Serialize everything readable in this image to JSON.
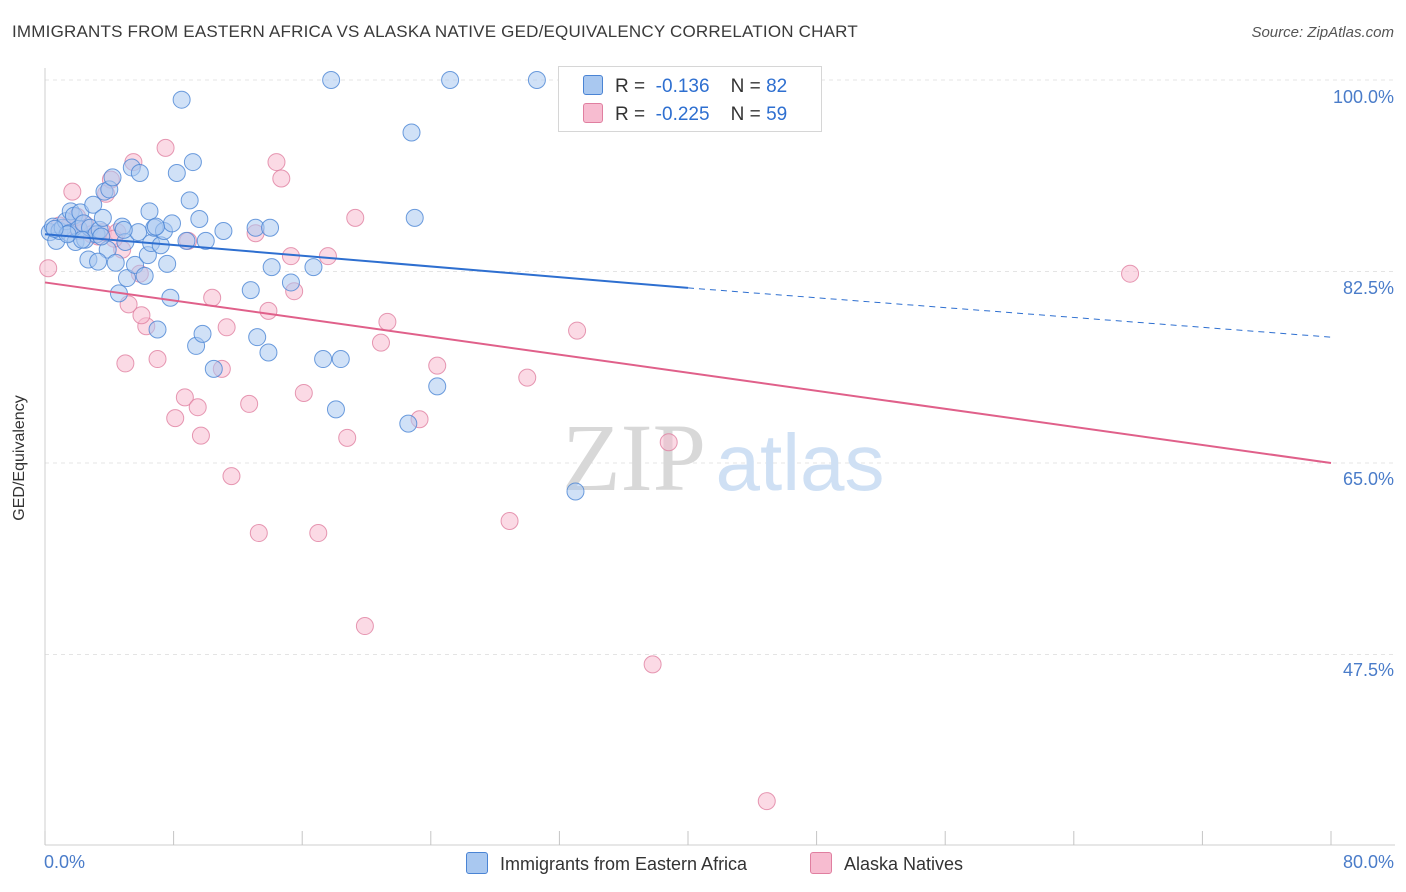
{
  "title": "IMMIGRANTS FROM EASTERN AFRICA VS ALASKA NATIVE GED/EQUIVALENCY CORRELATION CHART",
  "source": "Source: ZipAtlas.com",
  "watermark": {
    "zip": "ZIP",
    "atlas": "atlas"
  },
  "colors": {
    "blue_fill": "#a9c8f0",
    "blue_stroke": "#4a84d4",
    "blue_line": "#2e6fd0",
    "pink_fill": "#f7bcd0",
    "pink_stroke": "#e07fa0",
    "pink_line": "#e0608a",
    "grid": "#e4e4e4",
    "tick_text": "#4a7cc9"
  },
  "legend": {
    "rows": [
      {
        "r_label": "R =",
        "r_value": "-0.136",
        "n_label": "N =",
        "n_value": "82",
        "color": "blue"
      },
      {
        "r_label": "R =",
        "r_value": "-0.225",
        "n_label": "N =",
        "n_value": "59",
        "color": "pink"
      }
    ]
  },
  "bottom_legend": [
    {
      "label": "Immigrants from Eastern Africa",
      "color": "blue"
    },
    {
      "label": "Alaska Natives",
      "color": "pink"
    }
  ],
  "chart_data": {
    "type": "scatter",
    "title": "IMMIGRANTS FROM EASTERN AFRICA VS ALASKA NATIVE GED/EQUIVALENCY CORRELATION CHART",
    "xlabel": "",
    "ylabel": "GED/Equivalency",
    "xlim": [
      0,
      80
    ],
    "ylim": [
      32,
      102
    ],
    "x_tick_labels": [
      "0.0%",
      "80.0%"
    ],
    "y_ticks": [
      100.0,
      82.5,
      65.0,
      47.5
    ],
    "y_tick_labels": [
      "100.0%",
      "82.5%",
      "65.0%",
      "47.5%"
    ],
    "grid": true,
    "legend_position": "top-center",
    "series": [
      {
        "name": "Immigrants from Eastern Africa",
        "color": "blue",
        "R": -0.136,
        "N": 82,
        "trend": {
          "x": [
            0,
            40
          ],
          "y": [
            85.9,
            81.0
          ],
          "dashed_to": [
            80,
            76.5
          ]
        },
        "points": [
          [
            0.3,
            86.1
          ],
          [
            0.5,
            86.6
          ],
          [
            0.7,
            85.3
          ],
          [
            0.9,
            86.2
          ],
          [
            1.1,
            86.5
          ],
          [
            1.3,
            87.1
          ],
          [
            1.5,
            86.0
          ],
          [
            1.6,
            88.0
          ],
          [
            1.8,
            87.6
          ],
          [
            1.9,
            85.2
          ],
          [
            2.1,
            86.4
          ],
          [
            2.2,
            87.9
          ],
          [
            2.4,
            86.9
          ],
          [
            2.5,
            85.4
          ],
          [
            2.7,
            83.6
          ],
          [
            2.8,
            86.5
          ],
          [
            3.0,
            88.6
          ],
          [
            3.2,
            85.9
          ],
          [
            3.4,
            86.3
          ],
          [
            3.6,
            87.4
          ],
          [
            3.7,
            89.8
          ],
          [
            3.9,
            84.5
          ],
          [
            4.0,
            90.0
          ],
          [
            4.2,
            91.1
          ],
          [
            4.4,
            83.3
          ],
          [
            4.6,
            80.5
          ],
          [
            4.8,
            86.6
          ],
          [
            5.0,
            85.2
          ],
          [
            5.1,
            81.9
          ],
          [
            5.4,
            92.0
          ],
          [
            5.6,
            83.1
          ],
          [
            5.8,
            86.1
          ],
          [
            5.9,
            91.5
          ],
          [
            6.2,
            82.1
          ],
          [
            6.4,
            84.0
          ],
          [
            6.5,
            88.0
          ],
          [
            6.6,
            85.1
          ],
          [
            6.8,
            86.5
          ],
          [
            7.0,
            77.2
          ],
          [
            7.2,
            84.9
          ],
          [
            7.4,
            86.2
          ],
          [
            7.6,
            83.2
          ],
          [
            7.8,
            80.1
          ],
          [
            7.9,
            86.9
          ],
          [
            8.2,
            91.5
          ],
          [
            8.5,
            98.2
          ],
          [
            8.8,
            85.3
          ],
          [
            9.0,
            89.0
          ],
          [
            9.2,
            92.5
          ],
          [
            9.4,
            75.7
          ],
          [
            9.6,
            87.3
          ],
          [
            9.8,
            76.8
          ],
          [
            10.0,
            85.3
          ],
          [
            10.5,
            73.6
          ],
          [
            12.8,
            80.8
          ],
          [
            13.1,
            86.5
          ],
          [
            13.2,
            76.5
          ],
          [
            13.9,
            75.1
          ],
          [
            14.0,
            86.5
          ],
          [
            14.1,
            82.9
          ],
          [
            15.3,
            81.5
          ],
          [
            16.7,
            82.9
          ],
          [
            17.3,
            74.5
          ],
          [
            17.8,
            100.0
          ],
          [
            18.1,
            69.9
          ],
          [
            18.4,
            74.5
          ],
          [
            22.8,
            95.2
          ],
          [
            23.0,
            87.4
          ],
          [
            22.6,
            68.6
          ],
          [
            24.4,
            72.0
          ],
          [
            25.2,
            100.0
          ],
          [
            30.6,
            100.0
          ],
          [
            33.0,
            62.4
          ],
          [
            32.5,
            96.5
          ],
          [
            4.9,
            86.3
          ],
          [
            11.1,
            86.2
          ],
          [
            3.3,
            83.4
          ],
          [
            6.9,
            86.6
          ],
          [
            2.3,
            85.4
          ],
          [
            1.4,
            85.9
          ],
          [
            0.6,
            86.4
          ],
          [
            3.5,
            85.7
          ]
        ]
      },
      {
        "name": "Alaska Natives",
        "color": "pink",
        "R": -0.225,
        "N": 59,
        "trend": {
          "x": [
            0,
            80
          ],
          "y": [
            81.5,
            65.0
          ]
        },
        "points": [
          [
            0.2,
            82.8
          ],
          [
            0.9,
            86.7
          ],
          [
            1.4,
            86.5
          ],
          [
            1.7,
            89.8
          ],
          [
            2.1,
            86.2
          ],
          [
            2.5,
            86.8
          ],
          [
            2.9,
            85.9
          ],
          [
            3.3,
            85.7
          ],
          [
            3.6,
            86.1
          ],
          [
            3.8,
            89.6
          ],
          [
            4.1,
            90.9
          ],
          [
            4.5,
            86.1
          ],
          [
            4.8,
            84.5
          ],
          [
            5.0,
            74.1
          ],
          [
            5.2,
            79.5
          ],
          [
            5.5,
            92.5
          ],
          [
            5.9,
            82.3
          ],
          [
            6.3,
            77.5
          ],
          [
            7.0,
            74.5
          ],
          [
            7.5,
            93.8
          ],
          [
            8.1,
            69.1
          ],
          [
            8.7,
            71.0
          ],
          [
            8.9,
            85.3
          ],
          [
            9.5,
            70.1
          ],
          [
            9.7,
            67.5
          ],
          [
            10.4,
            80.1
          ],
          [
            11.0,
            73.6
          ],
          [
            11.3,
            77.4
          ],
          [
            11.6,
            63.8
          ],
          [
            12.7,
            70.4
          ],
          [
            13.1,
            86.0
          ],
          [
            13.3,
            58.6
          ],
          [
            13.9,
            78.9
          ],
          [
            14.4,
            92.5
          ],
          [
            14.7,
            91.0
          ],
          [
            15.3,
            83.9
          ],
          [
            15.5,
            80.7
          ],
          [
            16.1,
            71.4
          ],
          [
            17.0,
            58.6
          ],
          [
            17.6,
            83.9
          ],
          [
            18.8,
            67.3
          ],
          [
            19.3,
            87.4
          ],
          [
            19.9,
            50.1
          ],
          [
            20.9,
            76.0
          ],
          [
            21.3,
            77.9
          ],
          [
            23.3,
            69.0
          ],
          [
            24.4,
            73.9
          ],
          [
            28.9,
            59.7
          ],
          [
            30.0,
            72.8
          ],
          [
            33.1,
            77.1
          ],
          [
            37.8,
            46.6
          ],
          [
            38.8,
            66.9
          ],
          [
            40.5,
            100.0
          ],
          [
            42.5,
            100.0
          ],
          [
            44.9,
            34.1
          ],
          [
            67.5,
            82.3
          ],
          [
            6.0,
            78.5
          ],
          [
            2.0,
            87.5
          ],
          [
            4.3,
            85.5
          ]
        ]
      }
    ]
  }
}
